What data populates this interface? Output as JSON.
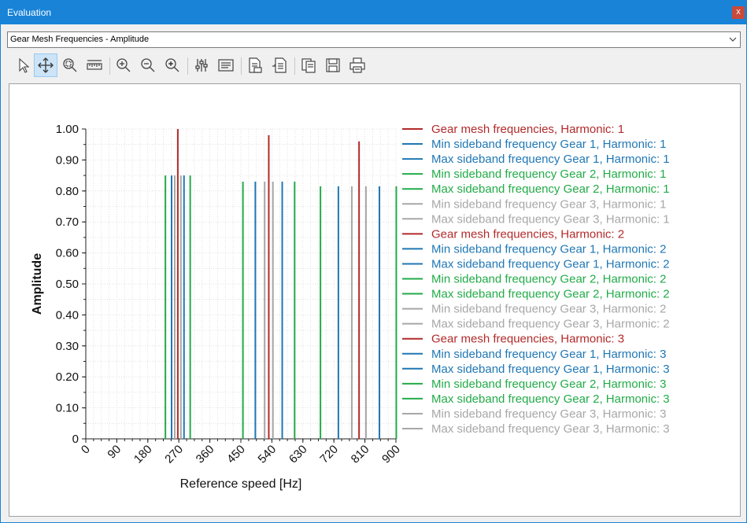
{
  "window": {
    "title": "Evaluation",
    "close_label": "x"
  },
  "selector": {
    "value": "Gear Mesh Frequencies - Amplitude"
  },
  "toolbar": {
    "tools": [
      {
        "name": "select-tool",
        "icon": "pointer-icon",
        "active": false
      },
      {
        "name": "pan-tool",
        "icon": "move-arrows-icon",
        "active": true
      },
      {
        "name": "zoom-region-tool",
        "icon": "zoom-region-icon",
        "active": false
      },
      {
        "name": "measure-tool",
        "icon": "ruler-icon",
        "active": false
      },
      {
        "name": "zoom-in-tool",
        "icon": "zoom-in-icon",
        "active": false
      },
      {
        "name": "zoom-out-tool",
        "icon": "zoom-out-icon",
        "active": false
      },
      {
        "name": "zoom-fit-tool",
        "icon": "zoom-fit-icon",
        "active": false
      },
      {
        "name": "chart-settings-tool",
        "icon": "sliders-icon",
        "active": false
      },
      {
        "name": "legend-tool",
        "icon": "legend-icon",
        "active": false
      },
      {
        "name": "export-data-tool",
        "icon": "export-document-icon",
        "active": false
      },
      {
        "name": "report-tool",
        "icon": "report-document-icon",
        "active": false
      },
      {
        "name": "copy-tool",
        "icon": "copy-icon",
        "active": false
      },
      {
        "name": "save-tool",
        "icon": "save-icon",
        "active": false
      },
      {
        "name": "print-tool",
        "icon": "print-icon",
        "active": false
      }
    ]
  },
  "chart_data": {
    "type": "bar",
    "title": "",
    "xlabel": "Reference speed [Hz]",
    "ylabel": "Amplitude",
    "xlim": [
      0,
      900
    ],
    "ylim": [
      0,
      1
    ],
    "grid": true,
    "legend_position": "right",
    "x_ticks": [
      "0",
      "90",
      "180",
      "270",
      "360",
      "450",
      "540",
      "630",
      "720",
      "810",
      "900"
    ],
    "y_ticks": [
      "0",
      "0.10",
      "0.20",
      "0.30",
      "0.40",
      "0.50",
      "0.60",
      "0.70",
      "0.80",
      "0.90",
      "1.00"
    ],
    "colors": {
      "gear_mesh": "#b22a2a",
      "gear1": "#1f77b4",
      "gear2": "#22ab48",
      "gear3": "#a7a7a7"
    },
    "series": [
      {
        "name": "Gear mesh frequencies, Harmonic: 1",
        "color_key": "gear_mesh",
        "x": [
          267
        ],
        "values": [
          1.0
        ]
      },
      {
        "name": "Min sideband frequency Gear 1, Harmonic: 1",
        "color_key": "gear1",
        "x": [
          249
        ],
        "values": [
          0.85
        ]
      },
      {
        "name": "Max sideband frequency Gear 1, Harmonic: 1",
        "color_key": "gear1",
        "x": [
          285
        ],
        "values": [
          0.85
        ]
      },
      {
        "name": "Min sideband frequency Gear 2, Harmonic: 1",
        "color_key": "gear2",
        "x": [
          231
        ],
        "values": [
          0.85
        ]
      },
      {
        "name": "Max sideband frequency Gear 2, Harmonic: 1",
        "color_key": "gear2",
        "x": [
          303
        ],
        "values": [
          0.85
        ]
      },
      {
        "name": "Min sideband frequency Gear 3, Harmonic: 1",
        "color_key": "gear3",
        "x": [
          258
        ],
        "values": [
          0.85
        ]
      },
      {
        "name": "Max sideband frequency Gear 3, Harmonic: 1",
        "color_key": "gear3",
        "x": [
          276
        ],
        "values": [
          0.85
        ]
      },
      {
        "name": "Gear mesh frequencies, Harmonic: 2",
        "color_key": "gear_mesh",
        "x": [
          531
        ],
        "values": [
          0.98
        ]
      },
      {
        "name": "Min sideband frequency Gear 1, Harmonic: 2",
        "color_key": "gear1",
        "x": [
          492
        ],
        "values": [
          0.83
        ]
      },
      {
        "name": "Max sideband frequency Gear 1, Harmonic: 2",
        "color_key": "gear1",
        "x": [
          570
        ],
        "values": [
          0.83
        ]
      },
      {
        "name": "Min sideband frequency Gear 2, Harmonic: 2",
        "color_key": "gear2",
        "x": [
          456
        ],
        "values": [
          0.83
        ]
      },
      {
        "name": "Max sideband frequency Gear 2, Harmonic: 2",
        "color_key": "gear2",
        "x": [
          606
        ],
        "values": [
          0.83
        ]
      },
      {
        "name": "Min sideband frequency Gear 3, Harmonic: 2",
        "color_key": "gear3",
        "x": [
          519
        ],
        "values": [
          0.83
        ]
      },
      {
        "name": "Max sideband frequency Gear 3, Harmonic: 2",
        "color_key": "gear3",
        "x": [
          543
        ],
        "values": [
          0.83
        ]
      },
      {
        "name": "Gear mesh frequencies, Harmonic: 3",
        "color_key": "gear_mesh",
        "x": [
          793
        ],
        "values": [
          0.96
        ]
      },
      {
        "name": "Min sideband frequency Gear 1, Harmonic: 3",
        "color_key": "gear1",
        "x": [
          733
        ],
        "values": [
          0.815
        ]
      },
      {
        "name": "Max sideband frequency Gear 1, Harmonic: 3",
        "color_key": "gear1",
        "x": [
          852
        ],
        "values": [
          0.815
        ]
      },
      {
        "name": "Min sideband frequency Gear 2, Harmonic: 3",
        "color_key": "gear2",
        "x": [
          681
        ],
        "values": [
          0.815
        ]
      },
      {
        "name": "Max sideband frequency Gear 2, Harmonic: 3",
        "color_key": "gear2",
        "x": [
          901
        ],
        "values": [
          0.815
        ]
      },
      {
        "name": "Min sideband frequency Gear 3, Harmonic: 3",
        "color_key": "gear3",
        "x": [
          772
        ],
        "values": [
          0.815
        ]
      },
      {
        "name": "Max sideband frequency Gear 3, Harmonic: 3",
        "color_key": "gear3",
        "x": [
          813
        ],
        "values": [
          0.815
        ]
      }
    ]
  }
}
